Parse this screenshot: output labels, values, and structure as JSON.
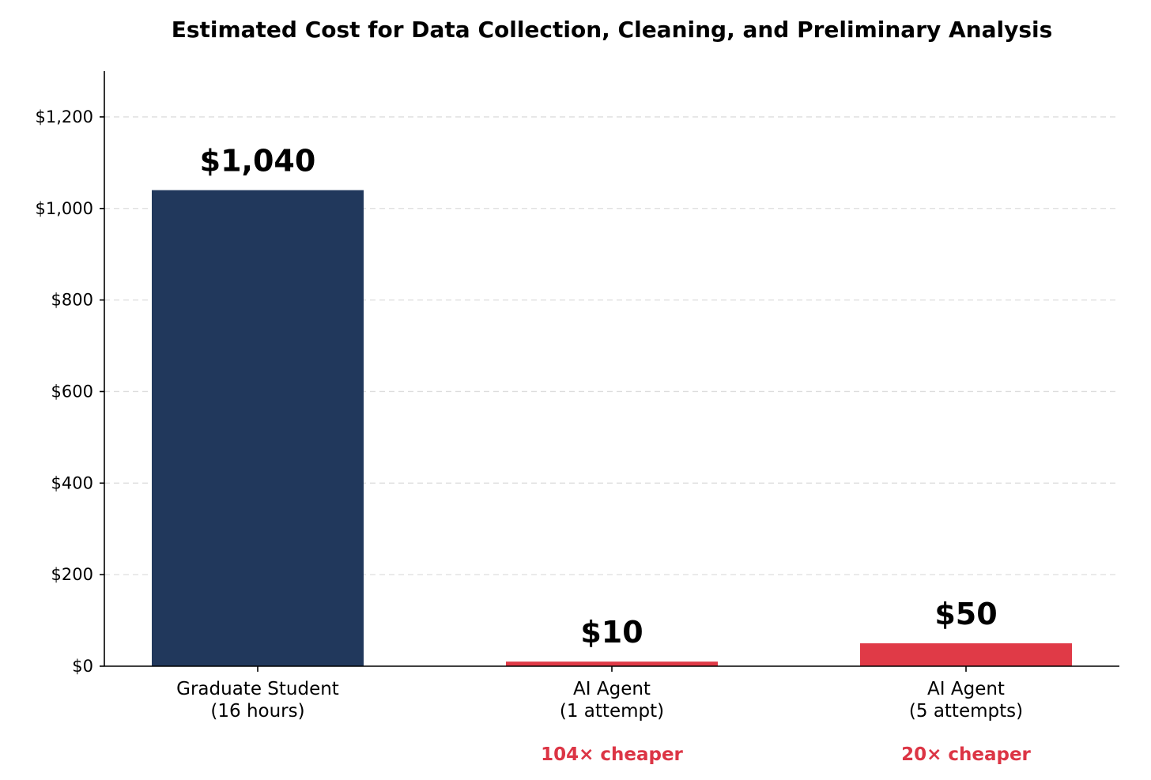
{
  "chart_data": {
    "type": "bar",
    "title": "Estimated Cost for Data Collection, Cleaning, and Preliminary Analysis",
    "xlabel": "",
    "ylabel": "",
    "ylim": [
      0,
      1300
    ],
    "yticks": [
      0,
      200,
      400,
      600,
      800,
      1000,
      1200
    ],
    "ytick_labels": [
      "$0",
      "$200",
      "$400",
      "$600",
      "$800",
      "$1,000",
      "$1,200"
    ],
    "grid": true,
    "categories": [
      [
        "Graduate Student",
        "(16 hours)"
      ],
      [
        "AI Agent",
        "(1 attempt)"
      ],
      [
        "AI Agent",
        "(5 attempts)"
      ]
    ],
    "values": [
      1040,
      10,
      50
    ],
    "value_labels": [
      "$1,040",
      "$10",
      "$50"
    ],
    "bar_colors": [
      "#21385c",
      "#e03a47",
      "#e03a47"
    ],
    "annotations": [
      "",
      "104× cheaper",
      "20× cheaper"
    ],
    "annotation_color": "#dc3545"
  }
}
